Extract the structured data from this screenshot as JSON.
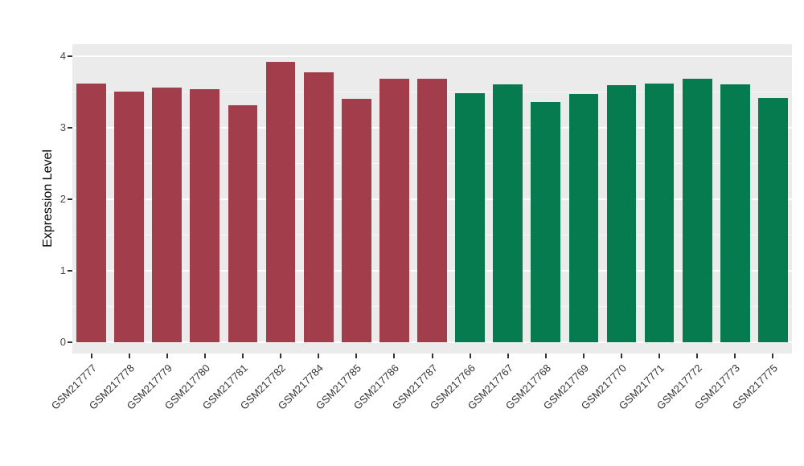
{
  "chart_data": {
    "type": "bar",
    "title": "",
    "xlabel": "",
    "ylabel": "Expression Level",
    "ylim": [
      0,
      4
    ],
    "yticks": [
      "0",
      "1",
      "2",
      "3",
      "4"
    ],
    "minor_gridlines": [
      0.5,
      1.5,
      2.5,
      3.5
    ],
    "grid": true,
    "legend_position": "none",
    "panel_background": "#EBEBEB",
    "grid_color": "#FFFFFF",
    "group_colors": {
      "red_group": "#A23E4B",
      "green_group": "#067B4F"
    },
    "categories": [
      "GSM217777",
      "GSM217778",
      "GSM217779",
      "GSM217780",
      "GSM217781",
      "GSM217782",
      "GSM217784",
      "GSM217785",
      "GSM217786",
      "GSM217787",
      "GSM217766",
      "GSM217767",
      "GSM217768",
      "GSM217769",
      "GSM217770",
      "GSM217771",
      "GSM217772",
      "GSM217773",
      "GSM217775"
    ],
    "values": [
      3.62,
      3.51,
      3.56,
      3.54,
      3.32,
      3.92,
      3.77,
      3.4,
      3.68,
      3.69,
      3.48,
      3.61,
      3.36,
      3.47,
      3.6,
      3.62,
      3.68,
      3.61,
      3.42
    ],
    "colors": [
      "#A23E4B",
      "#A23E4B",
      "#A23E4B",
      "#A23E4B",
      "#A23E4B",
      "#A23E4B",
      "#A23E4B",
      "#A23E4B",
      "#A23E4B",
      "#A23E4B",
      "#067B4F",
      "#067B4F",
      "#067B4F",
      "#067B4F",
      "#067B4F",
      "#067B4F",
      "#067B4F",
      "#067B4F",
      "#067B4F"
    ]
  }
}
